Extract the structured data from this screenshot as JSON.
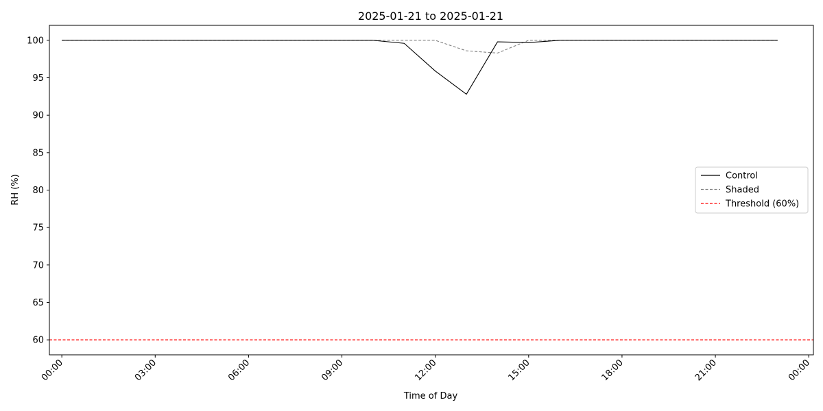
{
  "chart_data": {
    "type": "line",
    "title": "2025-01-21 to 2025-01-21",
    "xlabel": "Time of Day",
    "ylabel": "RH (%)",
    "xlim": [
      -0.4,
      24.15
    ],
    "ylim": [
      58,
      102
    ],
    "x_ticks": [
      0,
      3,
      6,
      9,
      12,
      15,
      18,
      21,
      24
    ],
    "x_tick_labels": [
      "00:00",
      "03:00",
      "06:00",
      "09:00",
      "12:00",
      "15:00",
      "18:00",
      "21:00",
      "00:00"
    ],
    "y_ticks": [
      60,
      65,
      70,
      75,
      80,
      85,
      90,
      95,
      100
    ],
    "y_tick_labels": [
      "60",
      "65",
      "70",
      "75",
      "80",
      "85",
      "90",
      "95",
      "100"
    ],
    "grid": false,
    "legend_position": "center-right",
    "x_hours": [
      0,
      1,
      2,
      3,
      4,
      5,
      6,
      7,
      8,
      9,
      10,
      11,
      12,
      13,
      14,
      15,
      16,
      17,
      18,
      19,
      20,
      21,
      22,
      23
    ],
    "series": [
      {
        "name": "Control",
        "color": "#000000",
        "dash": "solid",
        "values": [
          100,
          100,
          100,
          100,
          100,
          100,
          100,
          100,
          100,
          100,
          100,
          99.6,
          95.9,
          92.8,
          99.8,
          99.7,
          100,
          100,
          100,
          100,
          100,
          100,
          100,
          100
        ]
      },
      {
        "name": "Shaded",
        "color": "#808080",
        "dash": "dashed",
        "values": [
          100,
          100,
          100,
          100,
          100,
          100,
          100,
          100,
          100,
          100,
          100,
          100,
          100,
          98.6,
          98.3,
          100,
          100,
          100,
          100,
          100,
          100,
          100,
          100,
          100
        ]
      }
    ],
    "threshold": {
      "name": "Threshold (60%)",
      "value": 60,
      "color": "#ff0000",
      "dash": "dashed"
    }
  }
}
